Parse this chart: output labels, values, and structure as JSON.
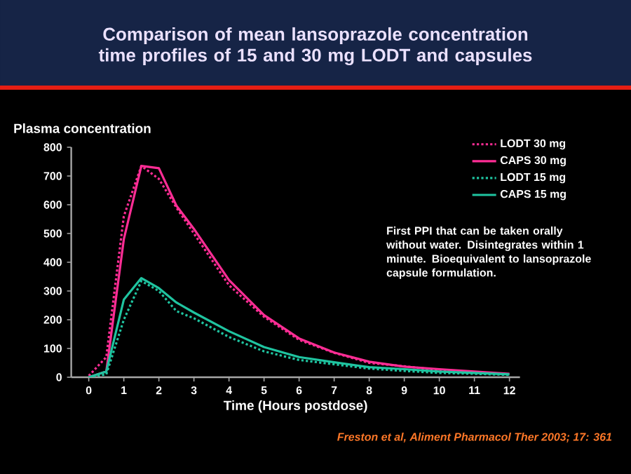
{
  "chart_data": {
    "type": "line",
    "title": "Comparison of mean lansoprazole concentration time profiles of 15 and 30 mg LODT and capsules",
    "ylabel": "Plasma concentration",
    "xlabel": "Time (Hours postdose)",
    "x": [
      0,
      0.5,
      1,
      1.5,
      2,
      2.5,
      3,
      4,
      5,
      6,
      7,
      8,
      9,
      10,
      11,
      12
    ],
    "series": [
      {
        "name": "LODT 30 mg",
        "color": "#ff2d95",
        "line_style": "dotted",
        "values": [
          5,
          70,
          560,
          735,
          690,
          590,
          500,
          320,
          210,
          130,
          85,
          50,
          38,
          25,
          18,
          10
        ]
      },
      {
        "name": "CAPS 30 mg",
        "color": "#ff2d95",
        "line_style": "solid",
        "values": [
          0,
          20,
          480,
          735,
          727,
          597,
          516,
          338,
          216,
          135,
          86,
          54,
          37,
          28,
          20,
          12
        ]
      },
      {
        "name": "LODT 15 mg",
        "color": "#1fc4a0",
        "line_style": "dotted",
        "values": [
          0,
          10,
          200,
          335,
          300,
          230,
          205,
          140,
          90,
          60,
          45,
          30,
          22,
          15,
          12,
          8
        ]
      },
      {
        "name": "CAPS 15 mg",
        "color": "#1fc4a0",
        "line_style": "solid",
        "values": [
          0,
          20,
          270,
          345,
          310,
          260,
          225,
          160,
          105,
          70,
          52,
          35,
          28,
          20,
          15,
          10
        ]
      }
    ],
    "xlim": [
      -0.5,
      12.3
    ],
    "ylim": [
      0,
      800
    ],
    "xticks": [
      0,
      1,
      2,
      3,
      4,
      5,
      6,
      7,
      8,
      9,
      10,
      11,
      12
    ],
    "yticks": [
      0,
      100,
      200,
      300,
      400,
      500,
      600,
      700,
      800
    ],
    "legend": "top right",
    "annotations": [
      "First PPI that can be taken orally without water. Disintegrates within 1 minute. Bioequivalent to lansoprazole capsule formulation.",
      "Freston et al, Aliment Pharmacol Ther 2003; 17: 361"
    ]
  }
}
